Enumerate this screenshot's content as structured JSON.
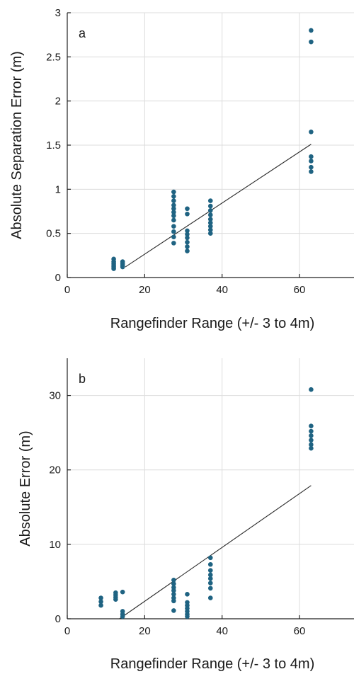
{
  "chart_data": [
    {
      "type": "scatter",
      "panel_label": "a",
      "xlabel": "Rangefinder Range (+/- 3 to 4m)",
      "ylabel": "Absolute Separation Error (m)",
      "xlim": [
        0,
        75
      ],
      "ylim": [
        0,
        3
      ],
      "xticks": [
        0,
        20,
        40,
        60
      ],
      "yticks": [
        0,
        0.5,
        1,
        1.5,
        2,
        2.5,
        3
      ],
      "ytick_labels": [
        "0",
        "0.5",
        "1",
        "1.5",
        "2",
        "2.5",
        "3"
      ],
      "grid": true,
      "marker_color": "#1f6382",
      "points": [
        [
          12,
          0.21
        ],
        [
          12,
          0.18
        ],
        [
          12,
          0.16
        ],
        [
          12,
          0.14
        ],
        [
          12,
          0.12
        ],
        [
          12,
          0.1
        ],
        [
          14.3,
          0.18
        ],
        [
          14.3,
          0.16
        ],
        [
          14.3,
          0.14
        ],
        [
          14.3,
          0.12
        ],
        [
          27.5,
          0.97
        ],
        [
          27.5,
          0.92
        ],
        [
          27.5,
          0.87
        ],
        [
          27.5,
          0.82
        ],
        [
          27.5,
          0.78
        ],
        [
          27.5,
          0.74
        ],
        [
          27.5,
          0.7
        ],
        [
          27.5,
          0.65
        ],
        [
          27.5,
          0.58
        ],
        [
          27.5,
          0.52
        ],
        [
          27.5,
          0.46
        ],
        [
          27.5,
          0.39
        ],
        [
          31,
          0.78
        ],
        [
          31,
          0.72
        ],
        [
          31,
          0.53
        ],
        [
          31,
          0.49
        ],
        [
          31,
          0.45
        ],
        [
          31,
          0.4
        ],
        [
          31,
          0.35
        ],
        [
          31,
          0.3
        ],
        [
          37,
          0.87
        ],
        [
          37,
          0.81
        ],
        [
          37,
          0.76
        ],
        [
          37,
          0.71
        ],
        [
          37,
          0.66
        ],
        [
          37,
          0.62
        ],
        [
          37,
          0.58
        ],
        [
          37,
          0.54
        ],
        [
          37,
          0.5
        ],
        [
          63,
          2.8
        ],
        [
          63,
          2.67
        ],
        [
          63,
          1.65
        ],
        [
          63,
          1.37
        ],
        [
          63,
          1.32
        ],
        [
          63,
          1.25
        ],
        [
          63,
          1.2
        ]
      ],
      "fit_line": {
        "x": [
          15,
          63
        ],
        "y": [
          0.12,
          1.51
        ]
      }
    },
    {
      "type": "scatter",
      "panel_label": "b",
      "xlabel": "Rangefinder Range (+/- 3 to 4m)",
      "ylabel": "Absolute Error (m)",
      "xlim": [
        0,
        75
      ],
      "ylim": [
        0,
        35
      ],
      "xticks": [
        0,
        20,
        40,
        60
      ],
      "yticks": [
        0,
        10,
        20,
        30
      ],
      "ytick_labels": [
        "0",
        "10",
        "20",
        "30"
      ],
      "grid": true,
      "marker_color": "#1f6382",
      "points": [
        [
          8.7,
          2.8
        ],
        [
          8.7,
          2.3
        ],
        [
          8.7,
          1.8
        ],
        [
          12.5,
          3.5
        ],
        [
          12.5,
          3.2
        ],
        [
          12.5,
          2.9
        ],
        [
          12.5,
          2.6
        ],
        [
          14.3,
          3.6
        ],
        [
          14.3,
          1.0
        ],
        [
          14.3,
          0.6
        ],
        [
          14.3,
          0.3
        ],
        [
          27.5,
          5.2
        ],
        [
          27.5,
          4.7
        ],
        [
          27.5,
          4.2
        ],
        [
          27.5,
          3.8
        ],
        [
          27.5,
          3.3
        ],
        [
          27.5,
          2.8
        ],
        [
          27.5,
          2.4
        ],
        [
          27.5,
          1.1
        ],
        [
          31,
          3.3
        ],
        [
          31,
          2.2
        ],
        [
          31,
          1.8
        ],
        [
          31,
          1.4
        ],
        [
          31,
          1.0
        ],
        [
          31,
          0.6
        ],
        [
          31,
          0.3
        ],
        [
          37,
          8.2
        ],
        [
          37,
          7.3
        ],
        [
          37,
          6.5
        ],
        [
          37,
          5.9
        ],
        [
          37,
          5.4
        ],
        [
          37,
          4.8
        ],
        [
          37,
          4.1
        ],
        [
          37,
          2.8
        ],
        [
          63,
          30.8
        ],
        [
          63,
          25.9
        ],
        [
          63,
          25.2
        ],
        [
          63,
          24.6
        ],
        [
          63,
          24.0
        ],
        [
          63,
          23.4
        ],
        [
          63,
          22.9
        ]
      ],
      "fit_line": {
        "x": [
          13.5,
          63
        ],
        "y": [
          0,
          17.9
        ]
      }
    }
  ]
}
